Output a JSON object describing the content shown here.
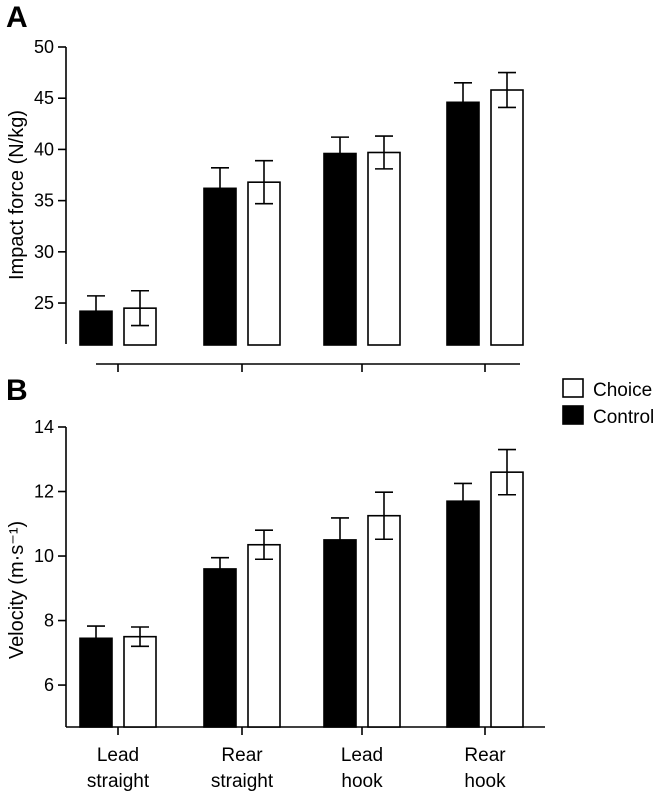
{
  "chart_data": [
    {
      "type": "bar",
      "panel_label": "A",
      "ylabel": "Impact force (N/kg)",
      "xlabel": "",
      "ylim": [
        21,
        50
      ],
      "yticks": [
        25,
        30,
        35,
        40,
        45,
        50
      ],
      "categories": [
        [
          "Lead",
          "straight"
        ],
        [
          "Rear",
          "straight"
        ],
        [
          "Lead",
          "hook"
        ],
        [
          "Rear",
          "hook"
        ]
      ],
      "show_category_labels": false,
      "series": [
        {
          "name": "Control",
          "fill": "#000000",
          "values": [
            24.2,
            36.2,
            39.6,
            44.6
          ],
          "errors": [
            1.5,
            2.0,
            1.6,
            1.9
          ]
        },
        {
          "name": "Choice",
          "fill": "#ffffff",
          "values": [
            24.5,
            36.8,
            39.7,
            45.8
          ],
          "errors": [
            1.7,
            2.1,
            1.6,
            1.7
          ]
        }
      ]
    },
    {
      "type": "bar",
      "panel_label": "B",
      "ylabel": "Velocity (m·s⁻¹)",
      "xlabel": "",
      "ylim": [
        4.7,
        14
      ],
      "yticks": [
        6,
        8,
        10,
        12,
        14
      ],
      "categories": [
        [
          "Lead",
          "straight"
        ],
        [
          "Rear",
          "straight"
        ],
        [
          "Lead",
          "hook"
        ],
        [
          "Rear",
          "hook"
        ]
      ],
      "show_category_labels": true,
      "series": [
        {
          "name": "Control",
          "fill": "#000000",
          "values": [
            7.45,
            9.6,
            10.5,
            11.7
          ],
          "errors": [
            0.38,
            0.35,
            0.68,
            0.55
          ]
        },
        {
          "name": "Choice",
          "fill": "#ffffff",
          "values": [
            7.5,
            10.35,
            11.25,
            12.6
          ],
          "errors": [
            0.3,
            0.45,
            0.73,
            0.7
          ]
        }
      ]
    }
  ],
  "legend": {
    "placement": "right, between panels",
    "items": [
      {
        "label": "Choice",
        "fill": "#ffffff"
      },
      {
        "label": "Control",
        "fill": "#000000"
      }
    ]
  }
}
